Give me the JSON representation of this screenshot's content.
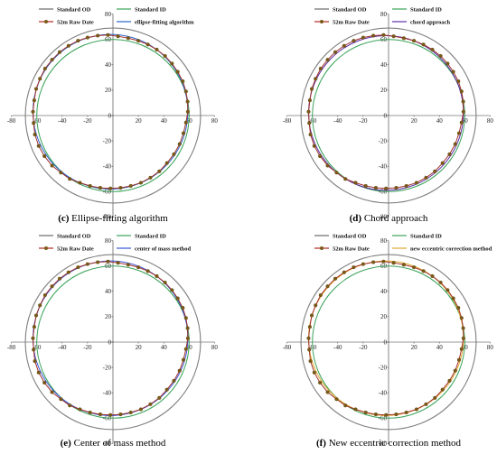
{
  "chart_data": [
    {
      "type": "scatter",
      "subtitle_letter": "(c)",
      "subtitle": "Ellipse-fitting algorithm",
      "legend": [
        "Standard OD",
        "Standard ID",
        "52m Raw Date",
        "ellipse-fitting algorithm"
      ],
      "fit_color": "#2a63c8",
      "xlim": [
        -80,
        80
      ],
      "ylim": [
        -80,
        80
      ],
      "xticks": [
        "-80",
        "-60",
        "-40",
        "-20",
        "0",
        "20",
        "40",
        "60",
        "80"
      ],
      "yticks": [
        "80",
        "60",
        "40",
        "20",
        "0",
        "-20",
        "-40",
        "-60",
        "-80"
      ],
      "standard_od_radius": 69,
      "standard_id_radius": 60,
      "fit_circle": {
        "cx": -2,
        "cy": 3,
        "r": 61
      }
    },
    {
      "type": "scatter",
      "subtitle_letter": "(d)",
      "subtitle": "Chord approach",
      "legend": [
        "Standard OD",
        "Standard ID",
        "52m Raw Date",
        "chord approach"
      ],
      "fit_color": "#5a2ea6",
      "xlim": [
        -80,
        80
      ],
      "ylim": [
        -80,
        80
      ],
      "xticks": [
        "-80",
        "-60",
        "-40",
        "-20",
        "0",
        "20",
        "40",
        "60",
        "80"
      ],
      "yticks": [
        "80",
        "60",
        "40",
        "20",
        "0",
        "-20",
        "-40",
        "-60",
        "-80"
      ],
      "standard_od_radius": 69,
      "standard_id_radius": 60,
      "fit_circle": {
        "cx": -2,
        "cy": 2,
        "r": 61
      }
    },
    {
      "type": "scatter",
      "subtitle_letter": "(e)",
      "subtitle": "Center of mass method",
      "legend": [
        "Standard OD",
        "Standard ID",
        "52m Raw Date",
        "center of mass method"
      ],
      "fit_color": "#3a55d8",
      "xlim": [
        -80,
        80
      ],
      "ylim": [
        -80,
        80
      ],
      "xticks": [
        "-80",
        "-60",
        "-40",
        "-20",
        "0",
        "20",
        "40",
        "60",
        "80"
      ],
      "yticks": [
        "80",
        "60",
        "40",
        "20",
        "0",
        "-20",
        "-40",
        "-60",
        "-80"
      ],
      "standard_od_radius": 69,
      "standard_id_radius": 60,
      "fit_circle": {
        "cx": -2,
        "cy": 3,
        "r": 61
      }
    },
    {
      "type": "scatter",
      "subtitle_letter": "(f)",
      "subtitle": "New eccentric correction method",
      "legend": [
        "Standard OD",
        "Standard ID",
        "52m Raw Date",
        "new eccentric correction method"
      ],
      "fit_color": "#e0a830",
      "xlim": [
        -80,
        80
      ],
      "ylim": [
        -80,
        80
      ],
      "xticks": [
        "-80",
        "-60",
        "-40",
        "-20",
        "0",
        "20",
        "40",
        "60",
        "80"
      ],
      "yticks": [
        "80",
        "60",
        "40",
        "20",
        "0",
        "-20",
        "-40",
        "-60",
        "-80"
      ],
      "standard_od_radius": 69,
      "standard_id_radius": 60,
      "fit_circle": {
        "cx": -2,
        "cy": 3,
        "r": 61
      }
    }
  ],
  "raw_data_52m": [
    [
      59.0,
      3.0
    ],
    [
      58.8,
      11.0
    ],
    [
      57.5,
      19.0
    ],
    [
      55.0,
      27.0
    ],
    [
      51.0,
      34.5
    ],
    [
      46.5,
      41.0
    ],
    [
      41.0,
      47.0
    ],
    [
      34.5,
      52.0
    ],
    [
      27.5,
      56.0
    ],
    [
      20.0,
      59.0
    ],
    [
      12.0,
      61.0
    ],
    [
      4.0,
      62.5
    ],
    [
      -4.0,
      63.5
    ],
    [
      -12.0,
      63.0
    ],
    [
      -20.0,
      61.5
    ],
    [
      -27.5,
      59.0
    ],
    [
      -35.0,
      55.0
    ],
    [
      -42.0,
      50.0
    ],
    [
      -48.0,
      44.0
    ],
    [
      -53.5,
      37.0
    ],
    [
      -57.5,
      29.0
    ],
    [
      -60.5,
      21.0
    ],
    [
      -62.0,
      12.0
    ],
    [
      -63.0,
      3.0
    ],
    [
      -62.5,
      -6.0
    ],
    [
      -61.5,
      -15.0
    ],
    [
      -58.5,
      -24.0
    ],
    [
      -54.0,
      -32.0
    ],
    [
      -48.0,
      -39.5
    ],
    [
      -41.0,
      -45.0
    ],
    [
      -34.0,
      -50.0
    ],
    [
      -26.0,
      -53.0
    ],
    [
      -18.0,
      -55.5
    ],
    [
      -10.0,
      -57.0
    ],
    [
      -2.0,
      -57.5
    ],
    [
      6.0,
      -57.0
    ],
    [
      14.0,
      -55.5
    ],
    [
      22.0,
      -53.0
    ],
    [
      29.5,
      -49.0
    ],
    [
      36.5,
      -44.0
    ],
    [
      42.5,
      -37.5
    ],
    [
      48.0,
      -30.5
    ],
    [
      52.5,
      -22.5
    ],
    [
      55.5,
      -14.0
    ],
    [
      57.5,
      -5.5
    ]
  ],
  "colors": {
    "standard_od": "#7f7f7f",
    "standard_id": "#3aa35a",
    "raw_line": "#a0302a",
    "raw_marker": "#7a5a18",
    "od_legend": "#6a6a6a",
    "id_legend": "#3aa35a",
    "raw_legend": "#b22a22"
  }
}
